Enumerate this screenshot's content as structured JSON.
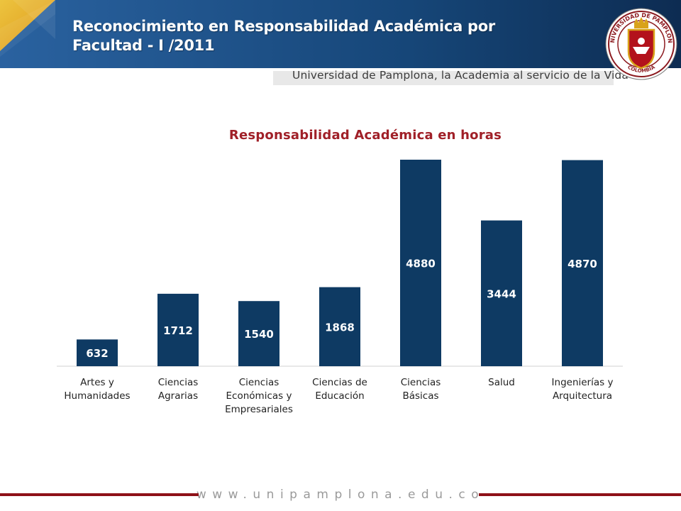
{
  "header": {
    "title_line1": "Reconocimiento en Responsabilidad Académica por",
    "title_line2": "Facultad  - I /2011",
    "tagline": "Universidad de Pamplona, la Academia al servicio de la Vida",
    "seal_text_top": "UNIVERSIDAD DE PAMPLONA",
    "seal_text_bottom": "COLOMBIA"
  },
  "colors": {
    "header_blue": "#1c4f86",
    "header_dark": "#0f3157",
    "accent_yellow": "#f2b21c",
    "bar": "#0e3a63",
    "chart_title": "#a02028",
    "footer_red": "#8e1118"
  },
  "chart_data": {
    "type": "bar",
    "title": "Responsabilidad Académica en horas",
    "xlabel": "",
    "ylabel": "",
    "categories": [
      "Artes y\nHumanidades",
      "Ciencias\nAgrarias",
      "Ciencias\nEconómicas y\nEmpresariales",
      "Ciencias de\nEducación",
      "Ciencias\nBásicas",
      "Salud",
      "Ingenierías y\nArquitectura"
    ],
    "values": [
      632,
      1712,
      1540,
      1868,
      4880,
      3444,
      4870
    ],
    "ylim": [
      0,
      4880
    ],
    "grid": false,
    "legend": "none",
    "data_labels": true
  },
  "footer": {
    "url": "www.unipamplona.edu.co"
  }
}
